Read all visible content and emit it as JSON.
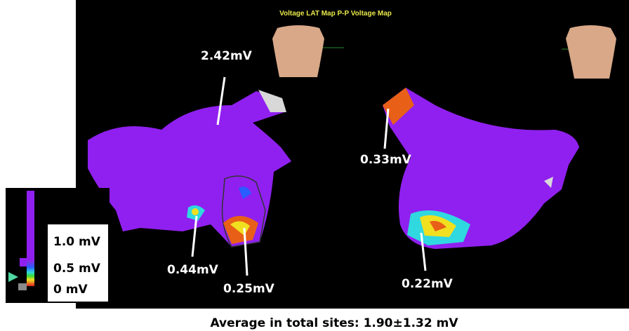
{
  "header": {
    "title": "Voltage LAT Map P-P Voltage Map"
  },
  "annotations": [
    {
      "label": "2.42mV"
    },
    {
      "label": "0.33mV"
    },
    {
      "label": "0.44mV"
    },
    {
      "label": "0.25mV"
    },
    {
      "label": "0.22mV"
    }
  ],
  "legend": {
    "labels": [
      "1.0 mV",
      "0.5 mV",
      "0 mV"
    ]
  },
  "caption": "Average in total sites: 1.90±1.32 mV"
}
